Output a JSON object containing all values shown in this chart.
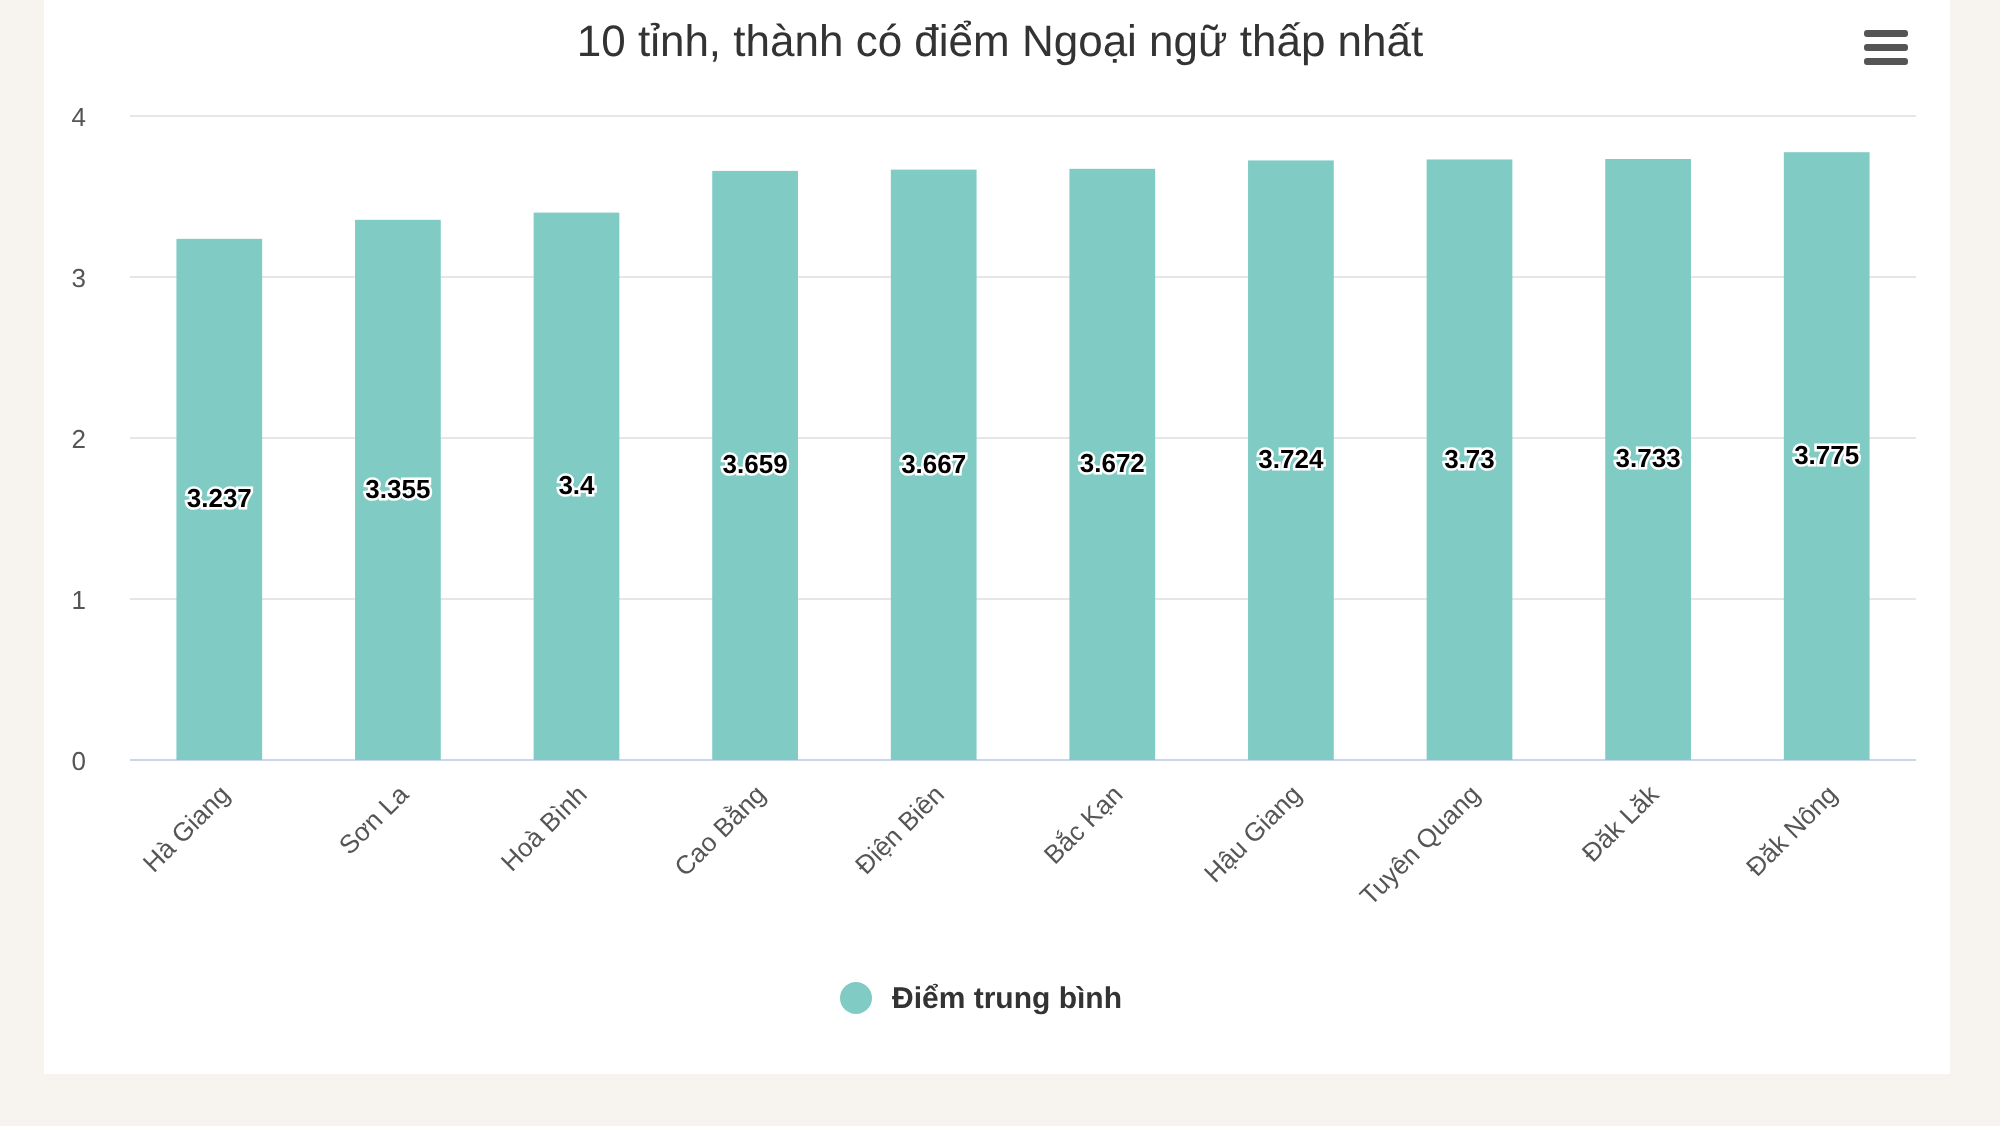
{
  "chart_data": {
    "type": "bar",
    "title": "10 tỉnh, thành có điểm Ngoại ngữ thấp nhất",
    "categories": [
      "Hà Giang",
      "Sơn La",
      "Hoà Bình",
      "Cao Bằng",
      "Điện Biên",
      "Bắc Kạn",
      "Hậu Giang",
      "Tuyên Quang",
      "Đăk Lăk",
      "Đăk Nông"
    ],
    "series": [
      {
        "name": "Điểm trung bình",
        "color": "#80cbc4",
        "values": [
          3.237,
          3.355,
          3.4,
          3.659,
          3.667,
          3.672,
          3.724,
          3.73,
          3.733,
          3.775
        ]
      }
    ],
    "ylim": [
      0,
      4
    ],
    "yticks": [
      0,
      1,
      2,
      3,
      4
    ],
    "grid": "y",
    "data_labels": true,
    "legend": "bottom"
  }
}
